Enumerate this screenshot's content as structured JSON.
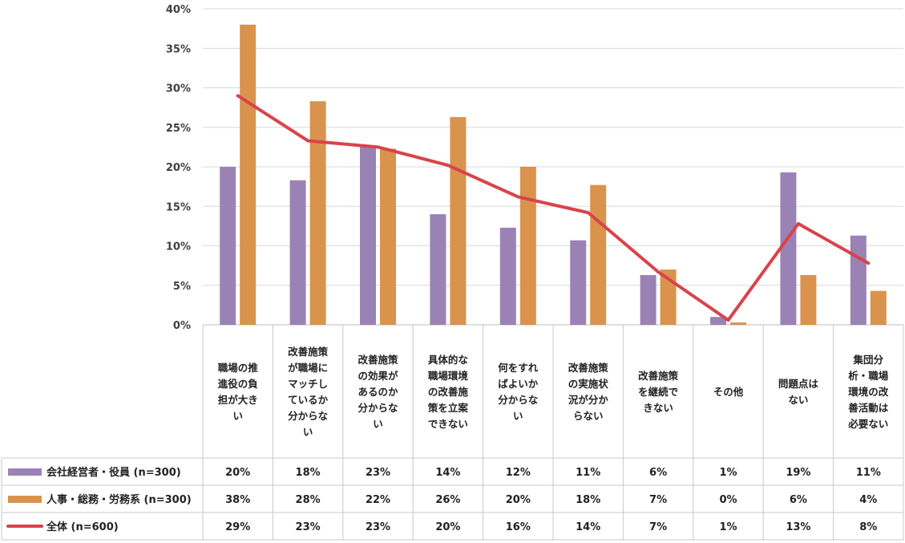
{
  "chart_data": {
    "type": "bar",
    "categories": [
      "職場の推進役の負担が大きい",
      "改善施策が職場にマッチしているか分からない",
      "改善施策の効果があるのか分からない",
      "具体的な職場環境の改善施策を立案できない",
      "何をすればよいか分からない",
      "改善施策の実施状況が分からない",
      "改善施策を継続できない",
      "その他",
      "問題点はない",
      "集団分析・職場環境の改善活動は必要ない"
    ],
    "category_lines": [
      [
        "職場の推",
        "進役の負",
        "担が大き",
        "い"
      ],
      [
        "改善施策",
        "が職場に",
        "マッチし",
        "ているか",
        "分からな",
        "い"
      ],
      [
        "改善施策",
        "の効果が",
        "あるのか",
        "分からな",
        "い"
      ],
      [
        "具体的な",
        "職場環境",
        "の改善施",
        "策を立案",
        "できない"
      ],
      [
        "何をすれ",
        "ばよいか",
        "分からな",
        "い"
      ],
      [
        "改善施策",
        "の実施状",
        "況が分か",
        "らない"
      ],
      [
        "改善施策",
        "を継続で",
        "きない"
      ],
      [
        "その他"
      ],
      [
        "問題点は",
        "ない"
      ],
      [
        "集団分",
        "析・職場",
        "環境の改",
        "善活動は",
        "必要ない"
      ]
    ],
    "series": [
      {
        "name": "会社経営者・役員 (n=300)",
        "kind": "bar",
        "color": "#9b82b5",
        "values": [
          20.0,
          18.3,
          22.7,
          14.0,
          12.3,
          10.7,
          6.3,
          1.0,
          19.3,
          11.3
        ],
        "labels": [
          "20%",
          "18%",
          "23%",
          "14%",
          "12%",
          "11%",
          "6%",
          "1%",
          "19%",
          "11%"
        ]
      },
      {
        "name": "人事・総務・労務系 (n=300)",
        "kind": "bar",
        "color": "#d9934c",
        "values": [
          38.0,
          28.3,
          22.3,
          26.3,
          20.0,
          17.7,
          7.0,
          0.3,
          6.3,
          4.3
        ],
        "labels": [
          "38%",
          "28%",
          "22%",
          "26%",
          "20%",
          "18%",
          "7%",
          "0%",
          "6%",
          "4%"
        ]
      },
      {
        "name": "全体 (n=600)",
        "kind": "line",
        "color": "#d9434a",
        "values": [
          29.0,
          23.3,
          22.5,
          20.2,
          16.2,
          14.2,
          6.7,
          0.6,
          12.8,
          7.8
        ],
        "labels": [
          "29%",
          "23%",
          "23%",
          "20%",
          "16%",
          "14%",
          "7%",
          "1%",
          "13%",
          "8%"
        ]
      }
    ],
    "y_ticks": [
      "0%",
      "5%",
      "10%",
      "15%",
      "20%",
      "25%",
      "30%",
      "35%",
      "40%"
    ],
    "ylim": [
      0,
      40
    ],
    "grid": true,
    "legend": "data-table-left"
  }
}
